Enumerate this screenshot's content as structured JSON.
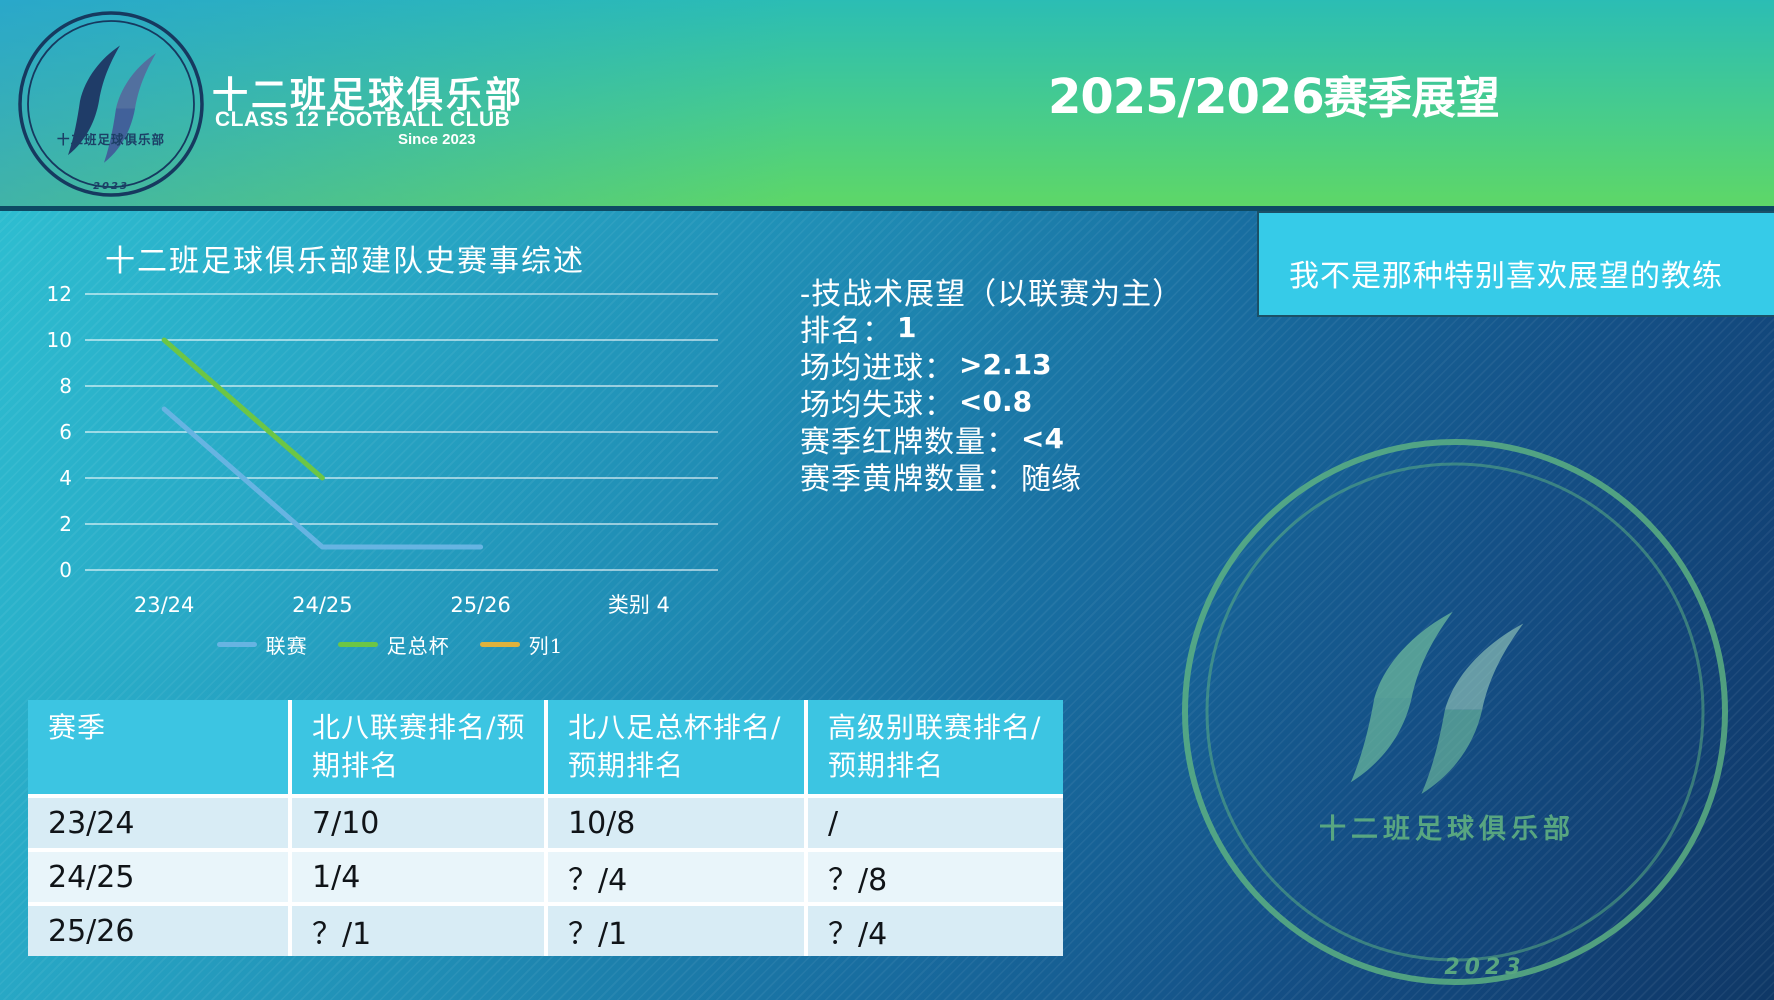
{
  "header": {
    "club_name_cn": "十二班足球俱乐部",
    "club_name_en": "CLASS 12 FOOTBALL CLUB",
    "since": "Since 2023",
    "slide_title_year": "2025/2026",
    "slide_title_rest": "赛季展望",
    "logo_text": "十二班足球俱乐部",
    "logo_year": "2023"
  },
  "chart_data": {
    "type": "line",
    "title": "十二班足球俱乐部建队史赛事综述",
    "categories": [
      "23/24",
      "24/25",
      "25/26",
      "类别 4"
    ],
    "series": [
      {
        "name": "联赛",
        "color": "#66b4e2",
        "values": [
          7,
          1,
          1,
          null
        ]
      },
      {
        "name": "足总杯",
        "color": "#6cc645",
        "values": [
          10,
          4,
          null,
          null
        ]
      },
      {
        "name": "列1",
        "color": "#dfb23c",
        "values": [
          null,
          null,
          null,
          null
        ]
      }
    ],
    "ylim": [
      0,
      12
    ],
    "ytick_step": 2,
    "grid": "horizontal",
    "gridline_color": "rgba(255,255,255,0.85)",
    "legend_position": "bottom"
  },
  "stats": {
    "title": "-技战术展望（以联赛为主）",
    "items": [
      {
        "label": "排名：",
        "value": "1"
      },
      {
        "label": "场均进球：",
        "value": ">2.13"
      },
      {
        "label": "场均失球：",
        "value": "<0.8"
      },
      {
        "label": "赛季红牌数量：",
        "value": "<4"
      },
      {
        "label": "赛季黄牌数量：",
        "value": "随缘"
      }
    ]
  },
  "callout": {
    "text": "我不是那种特别喜欢展望的教练"
  },
  "table": {
    "columns": [
      "赛季",
      "北八联赛排名/预期排名",
      "北八足总杯排名/预期排名",
      "高级别联赛排名/预期排名"
    ],
    "rows": [
      [
        "23/24",
        "7/10",
        "10/8",
        "/"
      ],
      [
        "24/25",
        "1/4",
        "？/4",
        "？/8"
      ],
      [
        "25/26",
        "？/1",
        "？/1",
        "？/4"
      ]
    ]
  },
  "watermark": {
    "club_name": "十二班足球俱乐部",
    "year": "2023"
  },
  "palette": {
    "band_top": "#2bbdb4",
    "band_bottom": "#5ed767",
    "divider": "#0d4a63",
    "callout_bg": "#36cbe8",
    "table_header": "#3cc5e2",
    "row_a": "#d8ecf5",
    "row_b": "#e9f5fa",
    "logo_navy": "#1f3c68",
    "logo_blue": "#4a669c",
    "watermark_green": "#5cab81"
  }
}
